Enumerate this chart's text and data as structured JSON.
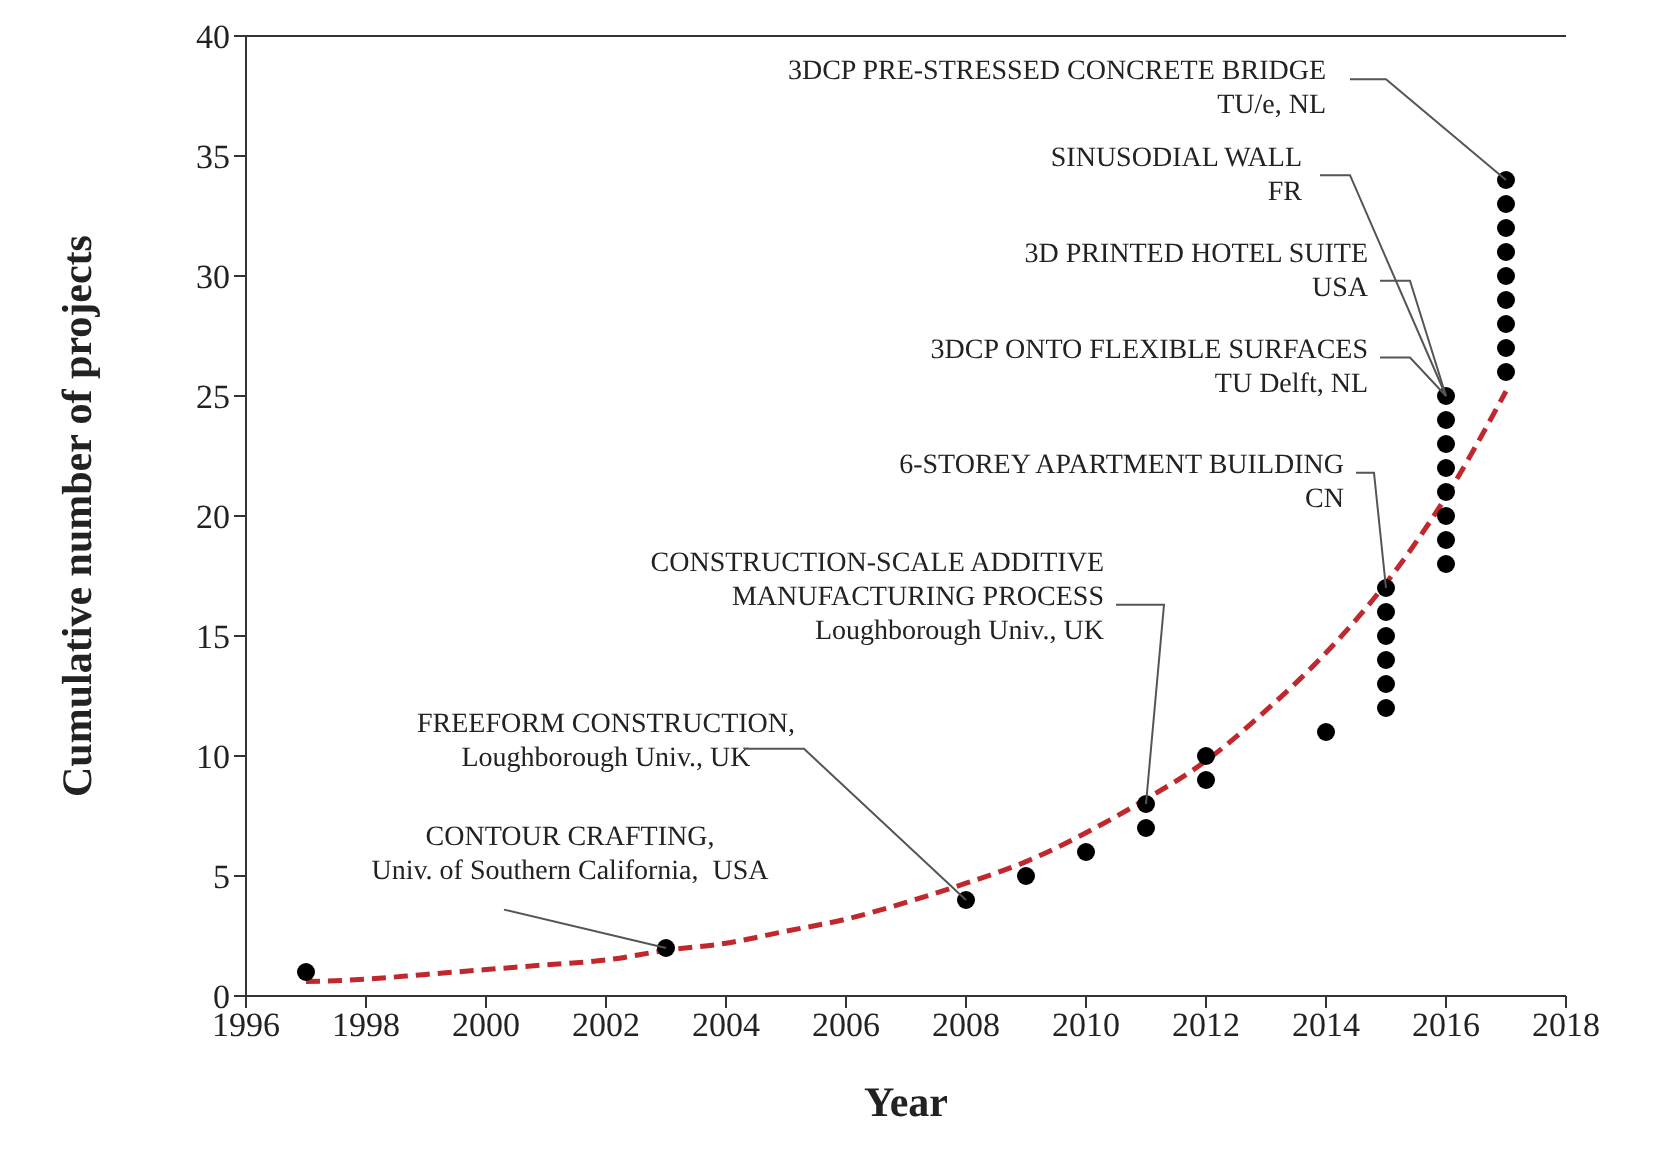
{
  "chart_data": {
    "type": "scatter",
    "xlabel": "Year",
    "ylabel": "Cumulative number of projects",
    "xlim": [
      1996,
      2018
    ],
    "xticks": [
      1996,
      1998,
      2000,
      2002,
      2004,
      2006,
      2008,
      2010,
      2012,
      2014,
      2016,
      2018
    ],
    "ylim": [
      0,
      40
    ],
    "yticks": [
      0,
      5,
      10,
      15,
      20,
      25,
      30,
      35,
      40
    ],
    "grid": false,
    "legend": false,
    "series": [
      {
        "color": "#000000",
        "marker": "circle",
        "x": [
          1997,
          2003,
          2008,
          2009,
          2010,
          2011,
          2011,
          2012,
          2012,
          2014,
          2015,
          2015,
          2015,
          2015,
          2015,
          2015,
          2016,
          2016,
          2016,
          2016,
          2016,
          2016,
          2016,
          2016,
          2017,
          2017,
          2017,
          2017,
          2017,
          2017,
          2017,
          2017,
          2017
        ],
        "values": [
          1,
          2,
          4,
          5,
          6,
          7,
          8,
          9,
          10,
          11,
          12,
          13,
          14,
          15,
          16,
          17,
          18,
          19,
          20,
          21,
          22,
          23,
          24,
          25,
          26,
          27,
          28,
          29,
          30,
          31,
          32,
          33,
          34
        ]
      },
      {
        "type": "line",
        "color": "#c0282d",
        "marker": "none",
        "line_style": "dashed",
        "x": [
          1997,
          1998,
          1999,
          2000,
          2001,
          2002,
          2003,
          2004,
          2005,
          2006,
          2007,
          2008,
          2009,
          2010,
          2011,
          2012,
          2013,
          2014,
          2015,
          2016,
          2017
        ],
        "values": [
          0.6,
          0.7,
          0.9,
          1.1,
          1.3,
          1.5,
          1.9,
          2.2,
          2.7,
          3.2,
          3.9,
          4.7,
          5.6,
          6.8,
          8.2,
          9.8,
          11.9,
          14.3,
          17.2,
          20.8,
          25.2
        ]
      }
    ],
    "annotations": [
      {
        "text": "CONTOUR CRAFTING,\nUniv. of Southern California,  USA",
        "x": 2003,
        "y": 2
      },
      {
        "text": "FREEFORM CONSTRUCTION,\nLoughborough Univ., UK",
        "x": 2008,
        "y": 4
      },
      {
        "text": "CONSTRUCTION-SCALE ADDITIVE\nMANUFACTURING PROCESS\nLoughborough Univ., UK",
        "x": 2011,
        "y": 8
      },
      {
        "text": "6-STOREY APARTMENT BUILDING\nCN",
        "x": 2015,
        "y": 17
      },
      {
        "text": "3DCP ONTO FLEXIBLE SURFACES\nTU Delft, NL",
        "x": 2016,
        "y": 25
      },
      {
        "text": "3D PRINTED HOTEL SUITE\nUSA",
        "x": 2016,
        "y": 25
      },
      {
        "text": "SINUSODIAL WALL\nFR",
        "x": 2016,
        "y": 25
      },
      {
        "text": "3DCP PRE-STRESSED CONCRETE BRIDGE\nTU/e, NL",
        "x": 2017,
        "y": 34
      }
    ]
  }
}
